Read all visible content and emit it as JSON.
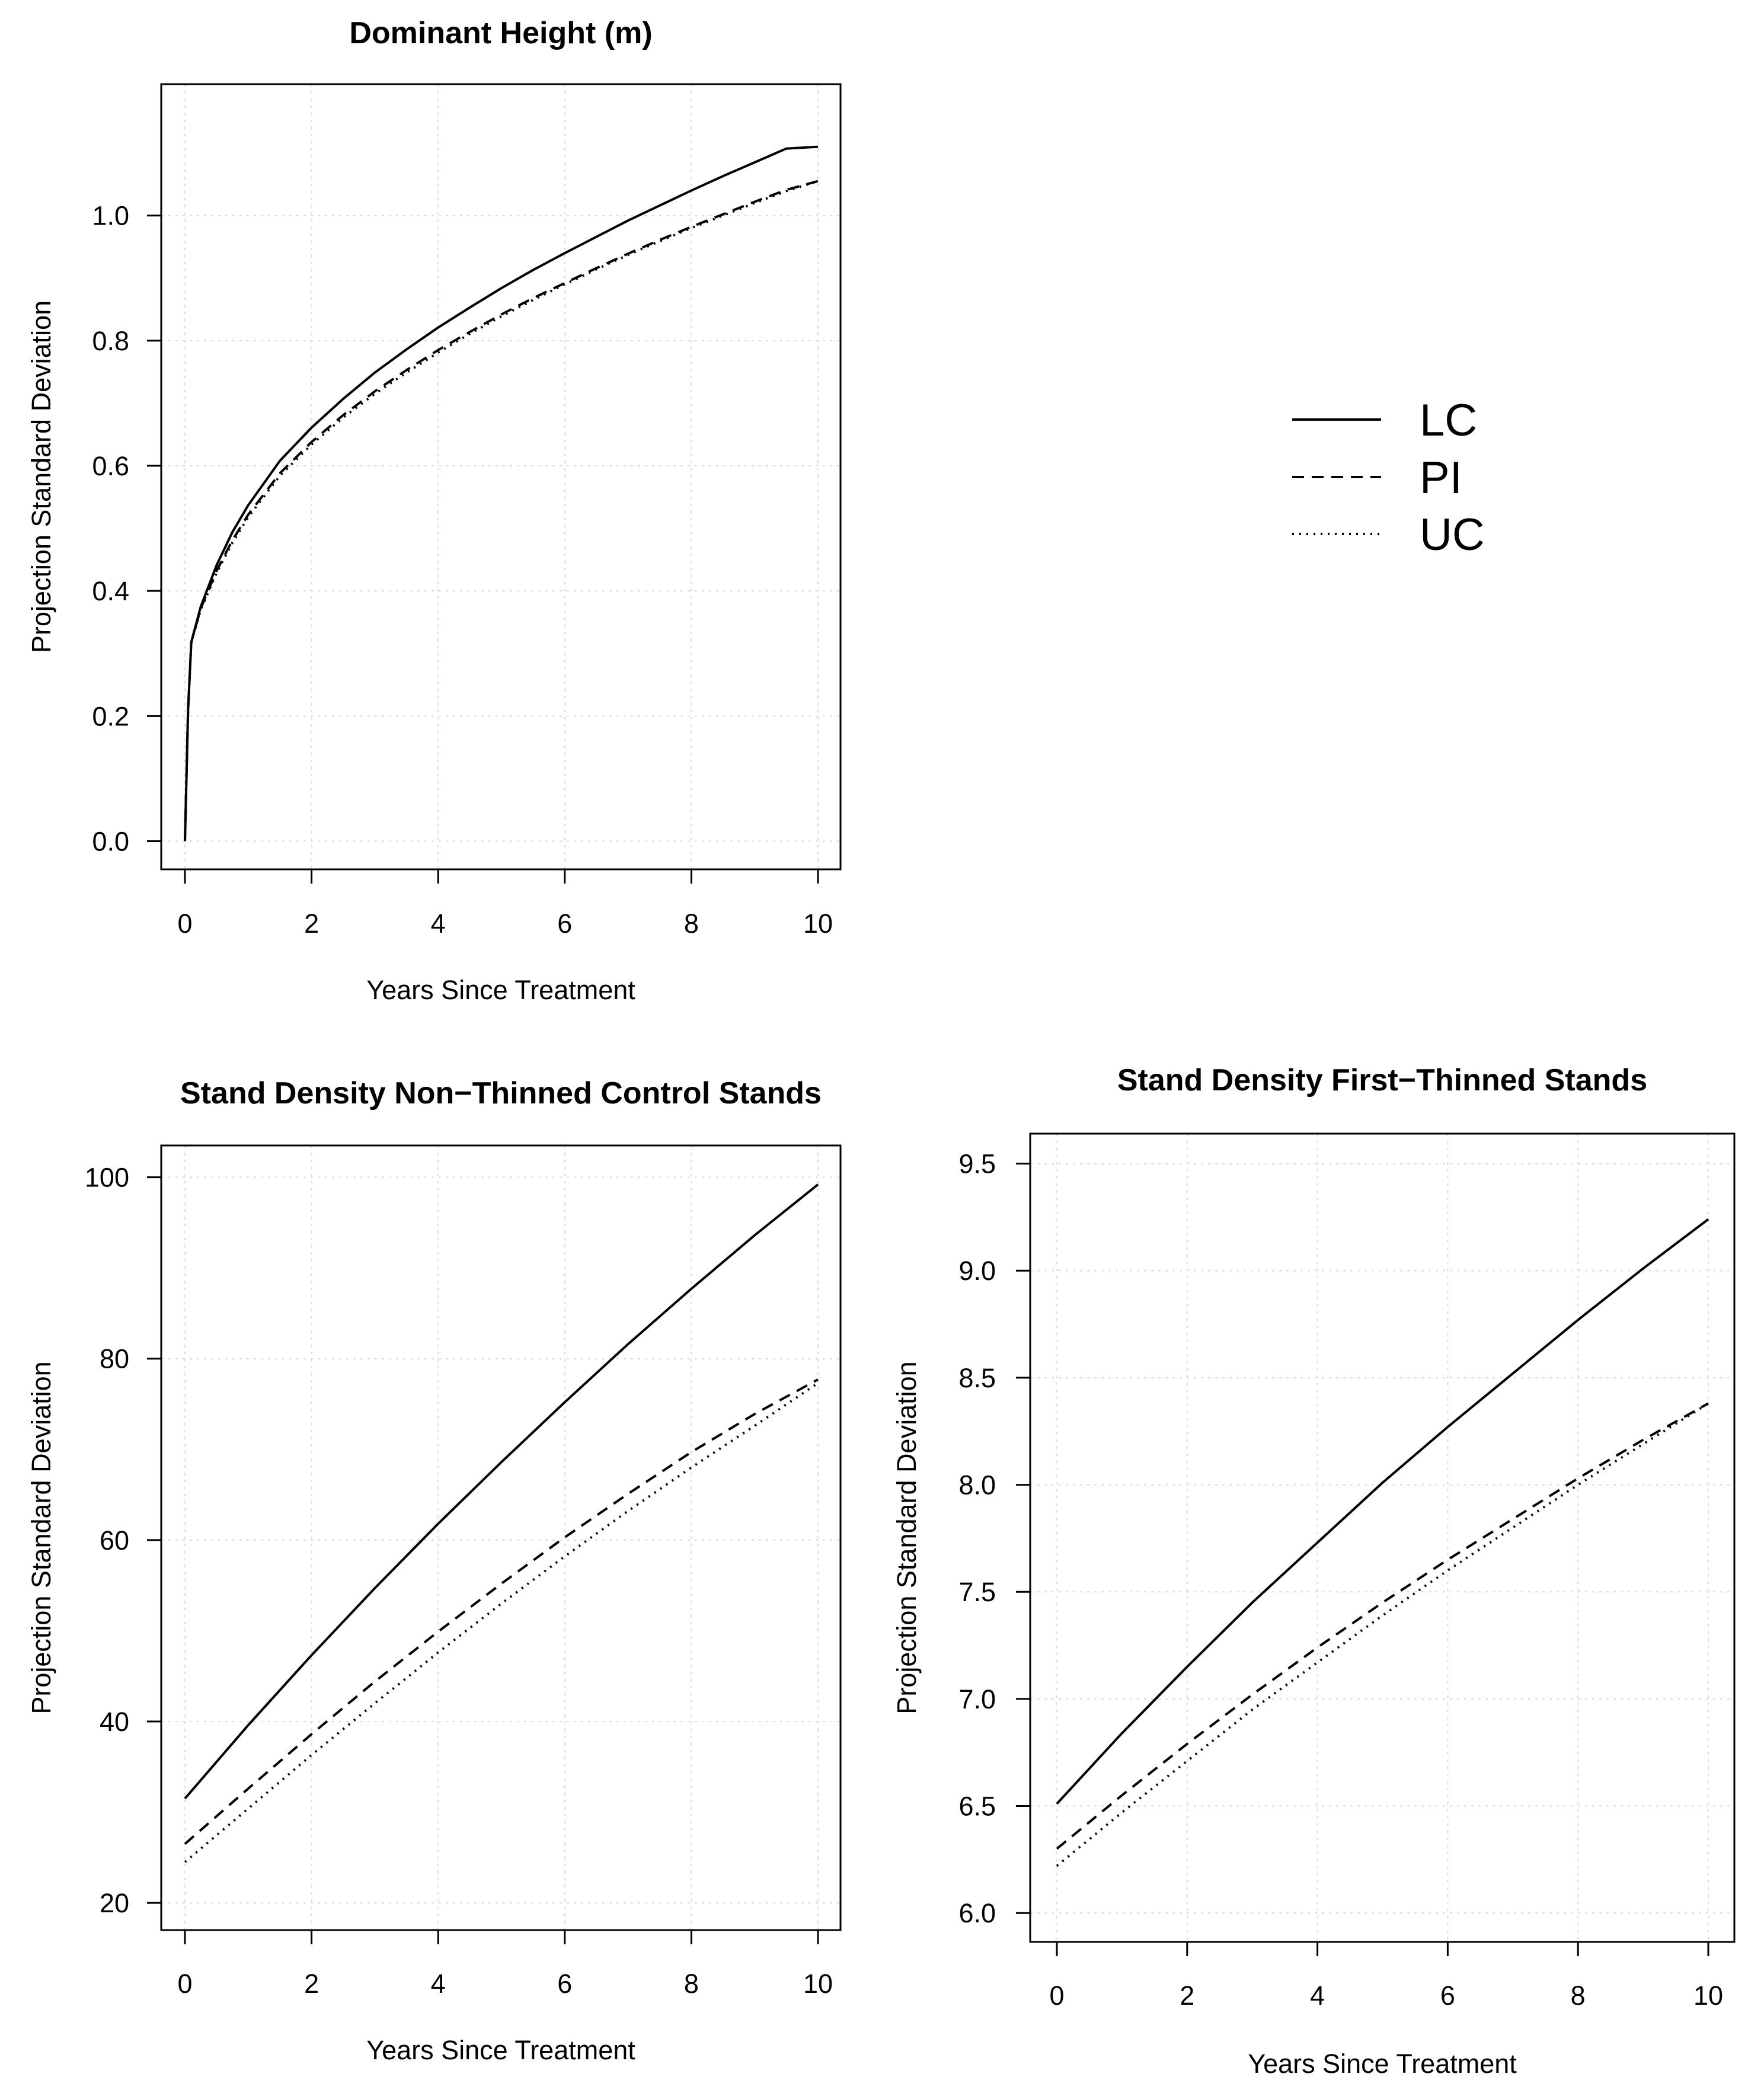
{
  "chart_data": [
    {
      "type": "line",
      "title": "Dominant Height (m)",
      "xlabel": "Years Since Treatment",
      "ylabel": "Projection Standard Deviation",
      "xlim": [
        0,
        10
      ],
      "ylim": [
        -0.045,
        1.21
      ],
      "xticks": [
        0,
        2,
        4,
        6,
        8,
        10
      ],
      "yticks": [
        0.0,
        0.2,
        0.4,
        0.6,
        0.8,
        1.0
      ],
      "ytick_labels": [
        "0.0",
        "0.2",
        "0.4",
        "0.6",
        "0.8",
        "1.0"
      ],
      "grid": true,
      "x": [
        0,
        0.05,
        0.1,
        0.25,
        0.5,
        0.75,
        1,
        1.5,
        2,
        2.5,
        3,
        3.5,
        4,
        4.5,
        5,
        5.5,
        6,
        6.5,
        7,
        7.5,
        8,
        8.5,
        9,
        9.5,
        10
      ],
      "series": [
        {
          "name": "LC",
          "style": "solid",
          "values": [
            0.0,
            0.21,
            0.318,
            0.375,
            0.441,
            0.494,
            0.537,
            0.608,
            0.661,
            0.707,
            0.749,
            0.786,
            0.821,
            0.853,
            0.884,
            0.913,
            0.94,
            0.966,
            0.992,
            1.016,
            1.04,
            1.063,
            1.085,
            1.107,
            1.11
          ]
        },
        {
          "name": "PI",
          "style": "dashed",
          "values": [
            0.0,
            0.21,
            0.318,
            0.372,
            0.432,
            0.481,
            0.522,
            0.588,
            0.638,
            0.681,
            0.719,
            0.753,
            0.785,
            0.814,
            0.842,
            0.868,
            0.892,
            0.916,
            0.939,
            0.961,
            0.982,
            1.002,
            1.022,
            1.041,
            1.055
          ]
        },
        {
          "name": "UC",
          "style": "dotted",
          "values": [
            0.0,
            0.21,
            0.318,
            0.37,
            0.429,
            0.477,
            0.518,
            0.584,
            0.634,
            0.677,
            0.715,
            0.749,
            0.781,
            0.811,
            0.839,
            0.865,
            0.89,
            0.914,
            0.937,
            0.959,
            0.98,
            1.0,
            1.02,
            1.039,
            1.055
          ]
        }
      ]
    },
    {
      "type": "line",
      "title": "Stand Density Non−Thinned Control Stands",
      "xlabel": "Years Since Treatment",
      "ylabel": "Projection Standard Deviation",
      "xlim": [
        0,
        10
      ],
      "ylim": [
        17,
        103.5
      ],
      "xticks": [
        0,
        2,
        4,
        6,
        8,
        10
      ],
      "yticks": [
        20,
        40,
        60,
        80,
        100
      ],
      "ytick_labels": [
        "20",
        "40",
        "60",
        "80",
        "100"
      ],
      "grid": true,
      "x": [
        0,
        1,
        2,
        3,
        4,
        5,
        6,
        7,
        8,
        9,
        10
      ],
      "series": [
        {
          "name": "LC",
          "style": "solid",
          "values": [
            31.5,
            39.6,
            47.3,
            54.7,
            61.8,
            68.6,
            75.2,
            81.6,
            87.7,
            93.6,
            99.2
          ]
        },
        {
          "name": "PI",
          "style": "dashed",
          "values": [
            26.5,
            32.6,
            38.6,
            44.4,
            49.9,
            55.2,
            60.3,
            65.1,
            69.7,
            73.9,
            77.7
          ]
        },
        {
          "name": "UC",
          "style": "dotted",
          "values": [
            24.5,
            30.4,
            36.3,
            42.0,
            47.6,
            53.0,
            58.2,
            63.2,
            68.0,
            72.6,
            77.3
          ]
        }
      ]
    },
    {
      "type": "line",
      "title": "Stand Density First−Thinned Stands",
      "xlabel": "Years Since Treatment",
      "ylabel": "Projection Standard Deviation",
      "xlim": [
        0,
        10
      ],
      "ylim": [
        5.865,
        9.64
      ],
      "xticks": [
        0,
        2,
        4,
        6,
        8,
        10
      ],
      "yticks": [
        6.0,
        6.5,
        7.0,
        7.5,
        8.0,
        8.5,
        9.0,
        9.5
      ],
      "ytick_labels": [
        "6.0",
        "6.5",
        "7.0",
        "7.5",
        "8.0",
        "8.5",
        "9.0",
        "9.5"
      ],
      "grid": true,
      "x": [
        0,
        1,
        2,
        3,
        4,
        5,
        6,
        7,
        8,
        9,
        10
      ],
      "series": [
        {
          "name": "LC",
          "style": "solid",
          "values": [
            6.51,
            6.84,
            7.15,
            7.45,
            7.73,
            8.01,
            8.27,
            8.52,
            8.77,
            9.01,
            9.24
          ]
        },
        {
          "name": "PI",
          "style": "dashed",
          "values": [
            6.3,
            6.55,
            6.79,
            7.02,
            7.24,
            7.45,
            7.65,
            7.84,
            8.03,
            8.21,
            8.38
          ]
        },
        {
          "name": "UC",
          "style": "dotted",
          "values": [
            6.22,
            6.47,
            6.71,
            6.95,
            7.17,
            7.39,
            7.6,
            7.8,
            8.0,
            8.19,
            8.38
          ]
        }
      ]
    }
  ],
  "legend": {
    "placement": "top-right panel",
    "entries": [
      {
        "label": "LC",
        "style": "solid"
      },
      {
        "label": "PI",
        "style": "dashed"
      },
      {
        "label": "UC",
        "style": "dotted"
      }
    ]
  }
}
